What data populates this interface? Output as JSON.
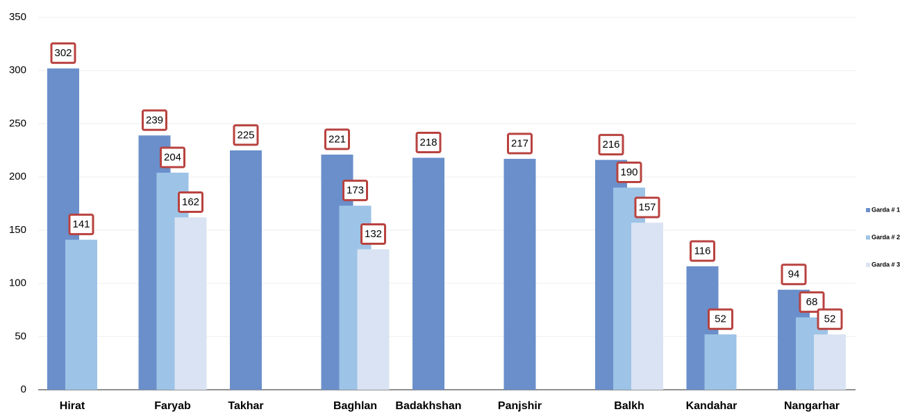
{
  "chart_data": {
    "type": "bar",
    "categories": [
      "Hirat",
      "Faryab",
      "Takhar",
      "Baghlan",
      "Badakhshan",
      "Panjshir",
      "Balkh",
      "Kandahar",
      "Nangarhar"
    ],
    "series": [
      {
        "name": "Garda # 1",
        "color": "#6a8fcb",
        "values": [
          302,
          239,
          225,
          221,
          218,
          217,
          216,
          116,
          94
        ]
      },
      {
        "name": "Garda # 2",
        "color": "#9dc3e6",
        "values": [
          141,
          204,
          null,
          173,
          null,
          null,
          190,
          52,
          68
        ]
      },
      {
        "name": "Garda # 3",
        "color": "#dae3f3",
        "values": [
          null,
          162,
          null,
          132,
          null,
          null,
          157,
          null,
          52
        ]
      }
    ],
    "ylim": [
      0,
      350
    ],
    "yticks": [
      0,
      50,
      100,
      150,
      200,
      250,
      300,
      350
    ],
    "grid": true,
    "legend": "right"
  }
}
